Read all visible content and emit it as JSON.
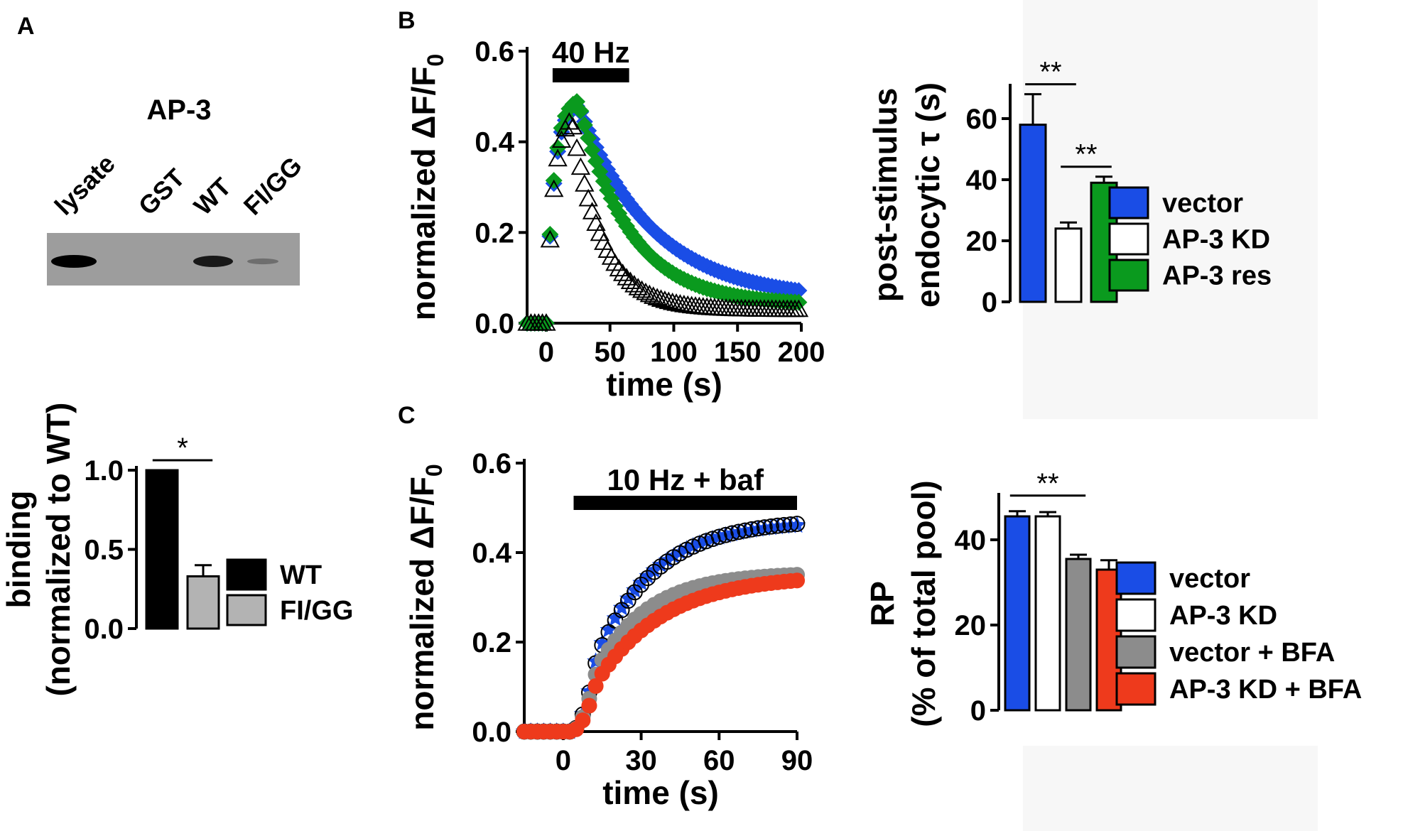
{
  "panels": {
    "A": "A",
    "B": "B",
    "C": "C"
  },
  "blot": {
    "title": "AP-3",
    "lanes": [
      "lysate",
      "GST",
      "WT",
      "FI/GG"
    ],
    "band_intensity": [
      1.0,
      0.0,
      0.85,
      0.3
    ]
  },
  "chart_data": [
    {
      "id": "A_bar",
      "type": "bar",
      "ylabel_line1": "binding",
      "ylabel_line2": "(normalized to WT)",
      "ylim": [
        0,
        1.0
      ],
      "yticks": [
        "0.0",
        "0.5",
        "1.0"
      ],
      "ytick_values": [
        0,
        0.5,
        1.0
      ],
      "categories": [
        "WT",
        "FI/GG"
      ],
      "values": [
        1.0,
        0.33
      ],
      "errors": [
        0,
        0.07
      ],
      "colors": [
        "#000000",
        "#b3b3b3"
      ],
      "legend": [
        "WT",
        "FI/GG"
      ],
      "significance": [
        {
          "from": 0,
          "to": 1,
          "label": "*"
        }
      ]
    },
    {
      "id": "B_line",
      "type": "scatter",
      "ylabel": "normalized ΔF/F",
      "ylabel_sub": "0",
      "xlabel": "time (s)",
      "xlim": [
        -15,
        200
      ],
      "ylim": [
        0,
        0.6
      ],
      "xticks": [
        "0",
        "50",
        "100",
        "150",
        "200"
      ],
      "xtick_values": [
        0,
        50,
        100,
        150,
        200
      ],
      "yticks": [
        "0.0",
        "0.2",
        "0.4",
        "0.6"
      ],
      "ytick_values": [
        0,
        0.2,
        0.4,
        0.6
      ],
      "stimulus": {
        "label": "40 Hz",
        "start": 5,
        "end": 65
      },
      "series": [
        {
          "name": "vector",
          "color": "#1a4de6",
          "marker": "diamond",
          "peak": 0.48,
          "peak_t": 25,
          "tau": 58,
          "plateau": 0.05
        },
        {
          "name": "AP-3 res",
          "color": "#0a9a1e",
          "marker": "diamond",
          "peak": 0.49,
          "peak_t": 25,
          "tau": 40,
          "plateau": 0.04
        },
        {
          "name": "AP-3 KD",
          "color": "#000000",
          "marker": "triangle-open",
          "peak": 0.45,
          "peak_t": 20,
          "tau": 24,
          "plateau": 0.03
        }
      ]
    },
    {
      "id": "B_bar",
      "type": "bar",
      "ylabel_line1": "post-stimulus",
      "ylabel_line2": "endocytic τ (s)",
      "ylim": [
        0,
        70
      ],
      "yticks": [
        "0",
        "20",
        "40",
        "60"
      ],
      "ytick_values": [
        0,
        20,
        40,
        60
      ],
      "categories": [
        "vector",
        "AP-3 KD",
        "AP-3 res"
      ],
      "values": [
        58,
        24,
        39
      ],
      "errors": [
        10,
        2,
        2
      ],
      "colors": [
        "#1a4de6",
        "#ffffff",
        "#0a9a1e"
      ],
      "legend": [
        "vector",
        "AP-3 KD",
        "AP-3 res"
      ],
      "significance": [
        {
          "from": 0,
          "to": 1,
          "label": "**"
        },
        {
          "from": 1,
          "to": 2,
          "label": "**"
        }
      ]
    },
    {
      "id": "C_line",
      "type": "scatter",
      "ylabel": "normalized ΔF/F",
      "ylabel_sub": "0",
      "xlabel": "time (s)",
      "xlim": [
        -15,
        90
      ],
      "ylim": [
        0,
        0.6
      ],
      "xticks": [
        "0",
        "30",
        "60",
        "90"
      ],
      "xtick_values": [
        0,
        30,
        60,
        90
      ],
      "yticks": [
        "0.0",
        "0.2",
        "0.4",
        "0.6"
      ],
      "ytick_values": [
        0,
        0.2,
        0.4,
        0.6
      ],
      "stimulus": {
        "label": "10 Hz + baf",
        "start": 4,
        "end": 90
      },
      "series": [
        {
          "name": "vector",
          "color": "#1a4de6",
          "marker": "star",
          "plateau": 0.47,
          "tau": 22
        },
        {
          "name": "AP-3 KD",
          "color": "#000000",
          "marker": "open-circle",
          "plateau": 0.475,
          "tau": 23
        },
        {
          "name": "vector + BFA",
          "color": "#8c8c8c",
          "marker": "circle",
          "plateau": 0.355,
          "tau": 20
        },
        {
          "name": "AP-3 KD + BFA",
          "color": "#ee3a1c",
          "marker": "circle",
          "plateau": 0.35,
          "tau": 26
        }
      ]
    },
    {
      "id": "C_bar",
      "type": "bar",
      "ylabel_line1": "RP",
      "ylabel_line2": "(% of total pool)",
      "ylim": [
        0,
        50
      ],
      "yticks": [
        "0",
        "20",
        "40"
      ],
      "ytick_values": [
        0,
        20,
        40
      ],
      "categories": [
        "vector",
        "AP-3 KD",
        "vector + BFA",
        "AP-3 KD + BFA"
      ],
      "values": [
        45.5,
        45.5,
        35.5,
        33
      ],
      "errors": [
        1.2,
        1,
        1,
        2.2
      ],
      "colors": [
        "#1a4de6",
        "#ffffff",
        "#8c8c8c",
        "#ee3a1c"
      ],
      "legend": [
        "vector",
        "AP-3 KD",
        "vector + BFA",
        "AP-3 KD + BFA"
      ],
      "significance": [
        {
          "from": 0,
          "to": 2,
          "label": "**"
        }
      ]
    }
  ]
}
